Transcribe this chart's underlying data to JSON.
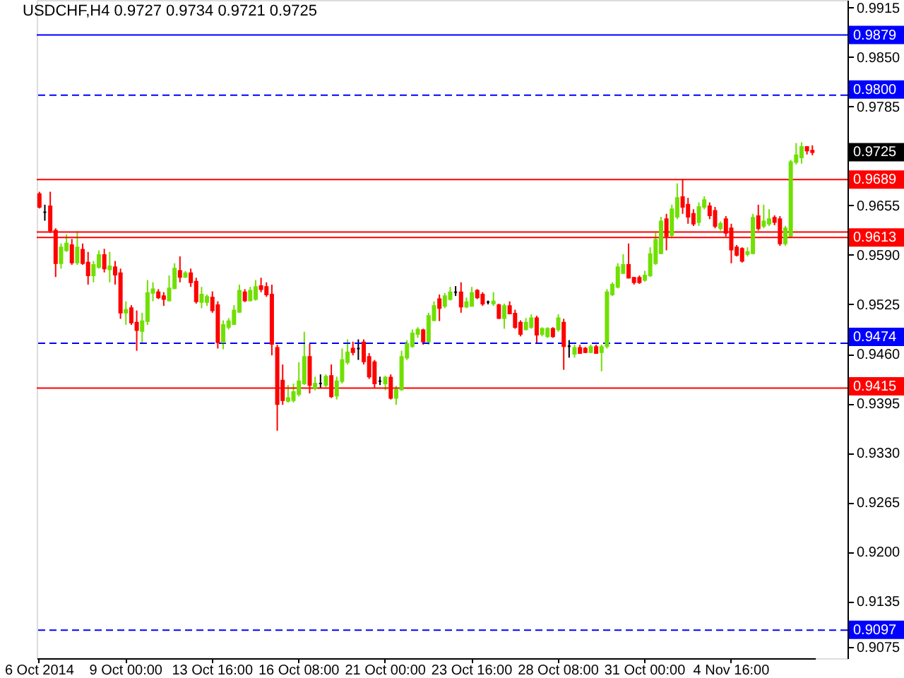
{
  "chart_data": {
    "type": "candlestick",
    "title": "USDCHF,H4 0.9727 0.9734 0.9721 0.9725",
    "categories": [
      "6 Oct 2014",
      null,
      null,
      null,
      null,
      null,
      null,
      null,
      null,
      null,
      null,
      null,
      null,
      null,
      null,
      null,
      "9 Oct 00:00",
      null,
      null,
      null,
      null,
      null,
      null,
      null,
      null,
      null,
      null,
      null,
      null,
      null,
      null,
      null,
      "13 Oct 16:00",
      null,
      null,
      null,
      null,
      null,
      null,
      null,
      null,
      null,
      null,
      null,
      null,
      null,
      null,
      null,
      "16 Oct 08:00",
      null,
      null,
      null,
      null,
      null,
      null,
      null,
      null,
      null,
      null,
      null,
      null,
      null,
      null,
      null,
      "21 Oct 00:00",
      null,
      null,
      null,
      null,
      null,
      null,
      null,
      null,
      null,
      null,
      null,
      null,
      null,
      null,
      null,
      "23 Oct 16:00",
      null,
      null,
      null,
      null,
      null,
      null,
      null,
      null,
      null,
      null,
      null,
      null,
      null,
      null,
      null,
      "28 Oct 08:00",
      null,
      null,
      null,
      null,
      null,
      null,
      null,
      null,
      null,
      null,
      null,
      null,
      null,
      null,
      null,
      "31 Oct 00:00",
      null,
      null,
      null,
      null,
      null,
      null,
      null,
      null,
      null,
      null,
      null,
      null,
      null,
      null,
      null,
      "4 Nov 16:00",
      null,
      null,
      null,
      null,
      null,
      null,
      null,
      null,
      null,
      null,
      null,
      null,
      null,
      null,
      null
    ],
    "ohlc": [
      [
        0.967,
        0.9673,
        0.9651,
        0.9653
      ],
      [
        0.9646,
        0.9656,
        0.9635,
        0.9646
      ],
      [
        0.9654,
        0.9673,
        0.9619,
        0.9622
      ],
      [
        0.9622,
        0.9625,
        0.9561,
        0.9579
      ],
      [
        0.9579,
        0.9605,
        0.9572,
        0.96
      ],
      [
        0.9596,
        0.9617,
        0.9594,
        0.9605
      ],
      [
        0.9603,
        0.9611,
        0.9577,
        0.958
      ],
      [
        0.958,
        0.9621,
        0.9577,
        0.96
      ],
      [
        0.9597,
        0.9605,
        0.9577,
        0.9579
      ],
      [
        0.958,
        0.9594,
        0.9551,
        0.9563
      ],
      [
        0.9563,
        0.9582,
        0.9554,
        0.9577
      ],
      [
        0.9574,
        0.9596,
        0.9572,
        0.959
      ],
      [
        0.959,
        0.9598,
        0.9567,
        0.9572
      ],
      [
        0.9571,
        0.9594,
        0.9554,
        0.9575
      ],
      [
        0.9574,
        0.9582,
        0.9551,
        0.9564
      ],
      [
        0.9566,
        0.9572,
        0.9506,
        0.9514
      ],
      [
        0.9514,
        0.9529,
        0.9498,
        0.9518
      ],
      [
        0.952,
        0.9524,
        0.9498,
        0.9501
      ],
      [
        0.9501,
        0.9517,
        0.9464,
        0.9491
      ],
      [
        0.949,
        0.9514,
        0.9473,
        0.9503
      ],
      [
        0.9503,
        0.9557,
        0.9498,
        0.954
      ],
      [
        0.954,
        0.9554,
        0.9529,
        0.9545
      ],
      [
        0.9541,
        0.9545,
        0.9532,
        0.9534
      ],
      [
        0.9536,
        0.9541,
        0.9523,
        0.9532
      ],
      [
        0.953,
        0.9563,
        0.9529,
        0.9546
      ],
      [
        0.9546,
        0.9579,
        0.9545,
        0.9572
      ],
      [
        0.9569,
        0.9588,
        0.9554,
        0.9561
      ],
      [
        0.9561,
        0.9569,
        0.956,
        0.9566
      ],
      [
        0.9566,
        0.9572,
        0.9548,
        0.9554
      ],
      [
        0.9555,
        0.956,
        0.9526,
        0.9529
      ],
      [
        0.9528,
        0.9548,
        0.952,
        0.9538
      ],
      [
        0.9528,
        0.9538,
        0.9523,
        0.9535
      ],
      [
        0.9534,
        0.9542,
        0.9514,
        0.9517
      ],
      [
        0.9524,
        0.9529,
        0.9467,
        0.9475
      ],
      [
        0.9475,
        0.9504,
        0.9466,
        0.9498
      ],
      [
        0.9495,
        0.9507,
        0.9492,
        0.9503
      ],
      [
        0.9499,
        0.9524,
        0.9498,
        0.9517
      ],
      [
        0.9515,
        0.9551,
        0.9514,
        0.9543
      ],
      [
        0.9541,
        0.9545,
        0.9528,
        0.953
      ],
      [
        0.953,
        0.9548,
        0.9529,
        0.9543
      ],
      [
        0.9532,
        0.9557,
        0.953,
        0.9548
      ],
      [
        0.9549,
        0.956,
        0.9541,
        0.9545
      ],
      [
        0.9548,
        0.9554,
        0.9535,
        0.9538
      ],
      [
        0.9538,
        0.9551,
        0.9458,
        0.9473
      ],
      [
        0.9468,
        0.9472,
        0.9359,
        0.9394
      ],
      [
        0.9425,
        0.9446,
        0.9393,
        0.9399
      ],
      [
        0.9398,
        0.9419,
        0.9396,
        0.9402
      ],
      [
        0.9399,
        0.9421,
        0.9396,
        0.941
      ],
      [
        0.9407,
        0.9449,
        0.9404,
        0.9424
      ],
      [
        0.9421,
        0.9489,
        0.9419,
        0.9456
      ],
      [
        0.9456,
        0.9473,
        0.9408,
        0.9419
      ],
      [
        0.9415,
        0.943,
        0.9412,
        0.9421
      ],
      [
        0.9421,
        0.9433,
        0.9415,
        0.9421
      ],
      [
        0.9419,
        0.9433,
        0.9416,
        0.943
      ],
      [
        0.9431,
        0.9446,
        0.9402,
        0.9404
      ],
      [
        0.9405,
        0.943,
        0.94,
        0.9424
      ],
      [
        0.9424,
        0.9467,
        0.9421,
        0.9452
      ],
      [
        0.9449,
        0.9479,
        0.9446,
        0.9462
      ],
      [
        0.9467,
        0.9476,
        0.9458,
        0.9462
      ],
      [
        0.9467,
        0.9479,
        0.9452,
        0.9467
      ],
      [
        0.9475,
        0.9479,
        0.9446,
        0.945
      ],
      [
        0.9456,
        0.9461,
        0.9427,
        0.943
      ],
      [
        0.9449,
        0.9452,
        0.9415,
        0.9421
      ],
      [
        0.9424,
        0.943,
        0.9419,
        0.9424
      ],
      [
        0.9421,
        0.9431,
        0.9412,
        0.9429
      ],
      [
        0.9429,
        0.9433,
        0.94,
        0.9402
      ],
      [
        0.9402,
        0.9418,
        0.9393,
        0.9413
      ],
      [
        0.9413,
        0.9464,
        0.9412,
        0.9456
      ],
      [
        0.9455,
        0.9478,
        0.9452,
        0.9473
      ],
      [
        0.947,
        0.9492,
        0.9468,
        0.9487
      ],
      [
        0.9486,
        0.9495,
        0.9481,
        0.9492
      ],
      [
        0.9491,
        0.9493,
        0.9472,
        0.9476
      ],
      [
        0.9476,
        0.9514,
        0.9472,
        0.951
      ],
      [
        0.9504,
        0.9529,
        0.9503,
        0.9523
      ],
      [
        0.9532,
        0.9538,
        0.9503,
        0.952
      ],
      [
        0.9523,
        0.954,
        0.952,
        0.9536
      ],
      [
        0.9532,
        0.9548,
        0.953,
        0.9541
      ],
      [
        0.9541,
        0.9549,
        0.9536,
        0.9541
      ],
      [
        0.9541,
        0.9554,
        0.9514,
        0.9522
      ],
      [
        0.9522,
        0.9534,
        0.952,
        0.9528
      ],
      [
        0.9523,
        0.9548,
        0.9522,
        0.954
      ],
      [
        0.9543,
        0.9545,
        0.9532,
        0.9534
      ],
      [
        0.9538,
        0.9541,
        0.9523,
        0.9526
      ],
      [
        0.9528,
        0.953,
        0.9525,
        0.9528
      ],
      [
        0.9526,
        0.9541,
        0.9523,
        0.9529
      ],
      [
        0.9524,
        0.9526,
        0.9506,
        0.9507
      ],
      [
        0.9507,
        0.9526,
        0.9493,
        0.9523
      ],
      [
        0.9523,
        0.9529,
        0.9512,
        0.9513
      ],
      [
        0.9513,
        0.9518,
        0.9493,
        0.9495
      ],
      [
        0.9501,
        0.9504,
        0.9483,
        0.9486
      ],
      [
        0.9492,
        0.9507,
        0.9491,
        0.9501
      ],
      [
        0.9495,
        0.9512,
        0.9493,
        0.9507
      ],
      [
        0.9507,
        0.951,
        0.9473,
        0.9485
      ],
      [
        0.9486,
        0.9495,
        0.9483,
        0.9493
      ],
      [
        0.9483,
        0.9495,
        0.9481,
        0.9493
      ],
      [
        0.9493,
        0.9495,
        0.9481,
        0.9483
      ],
      [
        0.9492,
        0.9512,
        0.9489,
        0.9507
      ],
      [
        0.9501,
        0.9506,
        0.9439,
        0.947
      ],
      [
        0.947,
        0.9478,
        0.9455,
        0.947
      ],
      [
        0.946,
        0.9472,
        0.9455,
        0.9468
      ],
      [
        0.9468,
        0.9472,
        0.946,
        0.9461
      ],
      [
        0.9467,
        0.9469,
        0.9461,
        0.9462
      ],
      [
        0.9462,
        0.9472,
        0.9461,
        0.9469
      ],
      [
        0.9469,
        0.9472,
        0.946,
        0.9461
      ],
      [
        0.9462,
        0.9472,
        0.9437,
        0.9469
      ],
      [
        0.947,
        0.9545,
        0.9467,
        0.9541
      ],
      [
        0.9538,
        0.9554,
        0.9536,
        0.9551
      ],
      [
        0.9548,
        0.9579,
        0.9546,
        0.9574
      ],
      [
        0.9566,
        0.9591,
        0.9565,
        0.9577
      ],
      [
        0.9577,
        0.9605,
        0.9559,
        0.956
      ],
      [
        0.956,
        0.9561,
        0.9551,
        0.9554
      ],
      [
        0.956,
        0.9563,
        0.9552,
        0.9554
      ],
      [
        0.9557,
        0.9569,
        0.9555,
        0.9563
      ],
      [
        0.9563,
        0.96,
        0.9561,
        0.9591
      ],
      [
        0.9579,
        0.9619,
        0.9577,
        0.961
      ],
      [
        0.9592,
        0.964,
        0.9591,
        0.9634
      ],
      [
        0.9637,
        0.9644,
        0.9596,
        0.9615
      ],
      [
        0.9616,
        0.9656,
        0.9613,
        0.965
      ],
      [
        0.964,
        0.9684,
        0.9637,
        0.9665
      ],
      [
        0.9666,
        0.969,
        0.9644,
        0.9653
      ],
      [
        0.9656,
        0.9665,
        0.9631,
        0.964
      ],
      [
        0.9644,
        0.965,
        0.9628,
        0.9631
      ],
      [
        0.9633,
        0.9659,
        0.9628,
        0.9653
      ],
      [
        0.9653,
        0.9667,
        0.965,
        0.9662
      ],
      [
        0.9654,
        0.9659,
        0.9637,
        0.9642
      ],
      [
        0.9648,
        0.9653,
        0.9625,
        0.9628
      ],
      [
        0.9625,
        0.9634,
        0.9622,
        0.9631
      ],
      [
        0.9637,
        0.9641,
        0.9614,
        0.9619
      ],
      [
        0.9625,
        0.9631,
        0.9579,
        0.9597
      ],
      [
        0.96,
        0.9603,
        0.9588,
        0.959
      ],
      [
        0.9598,
        0.96,
        0.958,
        0.9582
      ],
      [
        0.9591,
        0.96,
        0.9588,
        0.9594
      ],
      [
        0.9592,
        0.9644,
        0.9591,
        0.9639
      ],
      [
        0.9641,
        0.9656,
        0.9622,
        0.9625
      ],
      [
        0.9628,
        0.9656,
        0.9625,
        0.9634
      ],
      [
        0.9631,
        0.965,
        0.9628,
        0.9637
      ],
      [
        0.9639,
        0.9642,
        0.9629,
        0.9633
      ],
      [
        0.9637,
        0.9641,
        0.9602,
        0.9605
      ],
      [
        0.9605,
        0.9628,
        0.9602,
        0.9625
      ],
      [
        0.9615,
        0.9715,
        0.9613,
        0.9712
      ],
      [
        0.9712,
        0.9737,
        0.9709,
        0.9721
      ],
      [
        0.9718,
        0.9738,
        0.971,
        0.9732
      ],
      [
        0.9732,
        0.9733,
        0.9722,
        0.9727
      ],
      [
        0.9727,
        0.9734,
        0.9721,
        0.9725
      ]
    ],
    "colors": [
      "#ff0000",
      "#000000",
      "#ff0000",
      "#ff0000",
      "#70e000",
      "#70e000",
      "#ff0000",
      "#70e000",
      "#ff0000",
      "#ff0000",
      "#70e000",
      "#70e000",
      "#ff0000",
      "#70e000",
      "#ff0000",
      "#ff0000",
      "#70e000",
      "#ff0000",
      "#ff0000",
      "#70e000",
      "#70e000",
      "#70e000",
      "#ff0000",
      "#ff0000",
      "#70e000",
      "#70e000",
      "#ff0000",
      "#70e000",
      "#ff0000",
      "#ff0000",
      "#70e000",
      "#70e000",
      "#ff0000",
      "#ff0000",
      "#70e000",
      "#70e000",
      "#70e000",
      "#70e000",
      "#ff0000",
      "#70e000",
      "#70e000",
      "#ff0000",
      "#ff0000",
      "#ff0000",
      "#ff0000",
      "#ff0000",
      "#70e000",
      "#70e000",
      "#70e000",
      "#70e000",
      "#ff0000",
      "#70e000",
      "#000000",
      "#70e000",
      "#ff0000",
      "#70e000",
      "#70e000",
      "#70e000",
      "#ff0000",
      "#000000",
      "#ff0000",
      "#ff0000",
      "#ff0000",
      "#000000",
      "#70e000",
      "#ff0000",
      "#70e000",
      "#70e000",
      "#70e000",
      "#70e000",
      "#70e000",
      "#ff0000",
      "#70e000",
      "#70e000",
      "#ff0000",
      "#70e000",
      "#70e000",
      "#000000",
      "#ff0000",
      "#70e000",
      "#70e000",
      "#ff0000",
      "#ff0000",
      "#000000",
      "#70e000",
      "#ff0000",
      "#70e000",
      "#ff0000",
      "#ff0000",
      "#ff0000",
      "#70e000",
      "#70e000",
      "#ff0000",
      "#70e000",
      "#70e000",
      "#ff0000",
      "#70e000",
      "#ff0000",
      "#000000",
      "#70e000",
      "#ff0000",
      "#ff0000",
      "#70e000",
      "#ff0000",
      "#70e000",
      "#70e000",
      "#70e000",
      "#70e000",
      "#70e000",
      "#ff0000",
      "#ff0000",
      "#ff0000",
      "#70e000",
      "#70e000",
      "#70e000",
      "#70e000",
      "#ff0000",
      "#70e000",
      "#70e000",
      "#ff0000",
      "#ff0000",
      "#ff0000",
      "#70e000",
      "#70e000",
      "#ff0000",
      "#ff0000",
      "#70e000",
      "#ff0000",
      "#ff0000",
      "#ff0000",
      "#ff0000",
      "#70e000",
      "#70e000",
      "#ff0000",
      "#70e000",
      "#70e000",
      "#ff0000",
      "#ff0000",
      "#70e000",
      "#70e000",
      "#70e000",
      "#70e000",
      "#ff0000",
      "#ff0000"
    ],
    "ylim": [
      0.906,
      0.9925
    ],
    "yticks": [
      0.9915,
      {
        "value": 0.985,
        "label": "0.9850"
      },
      0.9785,
      0.9655,
      {
        "value": 0.959,
        "label": "0.9590"
      },
      0.9525,
      {
        "value": 0.946,
        "label": "0.9460"
      },
      0.9395,
      {
        "value": 0.933,
        "label": "0.9330"
      },
      0.9265,
      {
        "value": 0.92,
        "label": "0.9200"
      },
      0.9135,
      0.9075
    ],
    "ref_lines": [
      {
        "axis": "y",
        "value": 0.9879,
        "label": "0.9879",
        "color": "#0000ff",
        "line_style": "solid"
      },
      {
        "axis": "y",
        "value": 0.98,
        "label": "0.9800",
        "color": "#0000ff",
        "line_style": "dashed"
      },
      {
        "axis": "y",
        "value": 0.9689,
        "label": "0.9689",
        "color": "#ff0000",
        "line_style": "solid"
      },
      {
        "axis": "y",
        "value": 0.962,
        "color": "#ff0000",
        "line_style": "solid"
      },
      {
        "axis": "y",
        "value": 0.9613,
        "label": "0.9613",
        "color": "#ff0000",
        "line_style": "solid"
      },
      {
        "axis": "y",
        "value": 0.9474,
        "label": "0.9474",
        "color": "#0000ff",
        "line_style": "dashed"
      },
      {
        "axis": "y",
        "value": 0.9415,
        "label": "0.9415",
        "color": "#ff0000",
        "line_style": "solid"
      },
      {
        "axis": "y",
        "value": 0.9097,
        "label": "0.9097",
        "color": "#0000ff",
        "line_style": "dashed"
      }
    ],
    "annotations": [
      "0.9725"
    ]
  }
}
